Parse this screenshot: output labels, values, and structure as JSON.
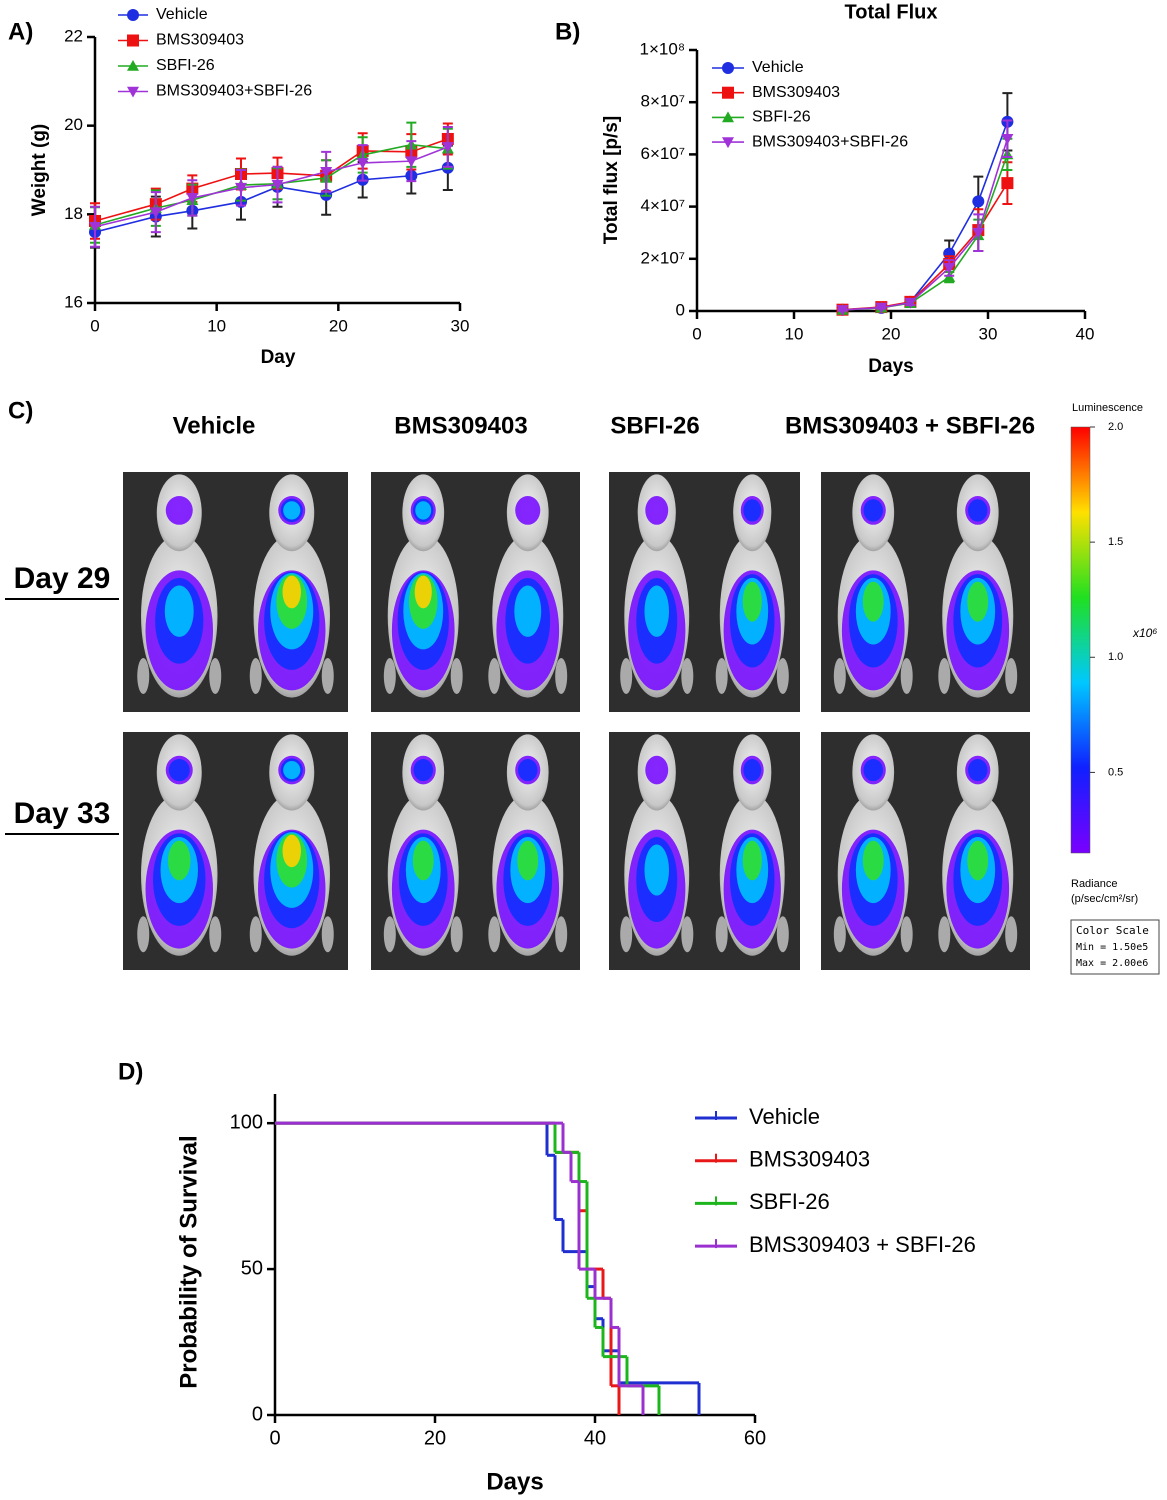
{
  "chart_data": [
    {
      "type": "line",
      "panel": "A)",
      "x_label": "Day",
      "y_label": "Weight (g)",
      "x": [
        0,
        5,
        8,
        12,
        15,
        19,
        22,
        26,
        29
      ],
      "xlim": [
        0,
        30
      ],
      "xticks": [
        0,
        10,
        20,
        30
      ],
      "ylim": [
        16,
        22
      ],
      "yticks": [
        16,
        18,
        20,
        22
      ],
      "legend": "upper-left",
      "series": [
        {
          "name": "Vehicle",
          "color": "#1f2ee0",
          "marker": "circle",
          "values": [
            17.6,
            17.95,
            18.08,
            18.28,
            18.62,
            18.44,
            18.78,
            18.87,
            19.05
          ],
          "errors": [
            0.35,
            0.45,
            0.4,
            0.4,
            0.45,
            0.45,
            0.4,
            0.4,
            0.5
          ]
        },
        {
          "name": "BMS309403",
          "color": "#ee1111",
          "marker": "square",
          "values": [
            17.85,
            18.23,
            18.58,
            18.91,
            18.93,
            18.87,
            19.43,
            19.41,
            19.7
          ],
          "errors": [
            0.4,
            0.35,
            0.3,
            0.35,
            0.35,
            0.35,
            0.4,
            0.4,
            0.35
          ]
        },
        {
          "name": "SBFI-26",
          "color": "#22aa22",
          "marker": "triangle-up",
          "values": [
            17.76,
            18.14,
            18.32,
            18.66,
            18.69,
            18.82,
            19.34,
            19.57,
            19.48
          ],
          "errors": [
            0.4,
            0.4,
            0.35,
            0.35,
            0.35,
            0.4,
            0.4,
            0.5,
            0.45
          ]
        },
        {
          "name": "BMS309403+SBFI-26",
          "color": "#a033d8",
          "marker": "triangle-down",
          "values": [
            17.72,
            18.05,
            18.37,
            18.6,
            18.67,
            18.96,
            19.16,
            19.2,
            19.52
          ],
          "errors": [
            0.45,
            0.45,
            0.4,
            0.4,
            0.4,
            0.45,
            0.4,
            0.45,
            0.45
          ]
        }
      ]
    },
    {
      "type": "line",
      "panel": "B)",
      "title": "Total Flux",
      "x_label": "Days",
      "y_label": "Total flux [p/s]",
      "x": [
        15,
        19,
        22,
        26,
        29,
        32
      ],
      "xlim": [
        0,
        40
      ],
      "xticks": [
        0,
        10,
        20,
        30,
        40
      ],
      "ylim": [
        0,
        100000000
      ],
      "yticks": [
        0,
        {
          "value": 20000000,
          "label": "2×10⁷"
        },
        {
          "value": 40000000,
          "label": "4×10⁷"
        },
        {
          "value": 60000000,
          "label": "6×10⁷"
        },
        {
          "value": 80000000,
          "label": "8×10⁷"
        },
        {
          "value": 100000000,
          "label": "1×10⁸"
        }
      ],
      "legend": "upper-left",
      "series": [
        {
          "name": "Vehicle",
          "color": "#1f2ee0",
          "marker": "circle",
          "values": [
            500000,
            1200000,
            3500000,
            22000000,
            42000000,
            72500000
          ],
          "errors": [
            300000,
            500000,
            1000000,
            5000000,
            9500000,
            11000000
          ]
        },
        {
          "name": "BMS309403",
          "color": "#ee1111",
          "marker": "square",
          "values": [
            500000,
            1500000,
            3500000,
            18000000,
            31000000,
            49000000
          ],
          "errors": [
            300000,
            500000,
            1000000,
            3000000,
            8000000,
            8000000
          ]
        },
        {
          "name": "SBFI-26",
          "color": "#22aa22",
          "marker": "triangle-up",
          "values": [
            400000,
            1200000,
            3000000,
            13000000,
            29000000,
            60000000
          ],
          "errors": [
            300000,
            400000,
            800000,
            2000000,
            6000000,
            6000000
          ]
        },
        {
          "name": "BMS309403+SBFI-26",
          "color": "#a033d8",
          "marker": "triangle-down",
          "values": [
            400000,
            1300000,
            3200000,
            16500000,
            30000000,
            66000000
          ],
          "errors": [
            300000,
            400000,
            900000,
            3000000,
            7000000,
            7000000
          ]
        }
      ]
    },
    {
      "type": "step",
      "panel": "D)",
      "x_label": "Days",
      "y_label": "Probability of Survival",
      "xlim": [
        0,
        60
      ],
      "xticks": [
        0,
        20,
        40,
        60
      ],
      "ylim": [
        0,
        110
      ],
      "yticks": [
        0,
        50,
        100
      ],
      "legend": "right",
      "series": [
        {
          "name": "Vehicle",
          "color": "#1f2fd0",
          "x": [
            0,
            34,
            35,
            36,
            39,
            40,
            41,
            43,
            53
          ],
          "values": [
            100,
            89,
            67,
            56,
            44,
            33,
            22,
            11,
            0
          ]
        },
        {
          "name": "BMS309403",
          "color": "#e81818",
          "x": [
            0,
            35,
            38,
            39,
            41,
            42,
            43
          ],
          "values": [
            100,
            90,
            70,
            50,
            40,
            10,
            0
          ]
        },
        {
          "name": "SBFI-26",
          "color": "#1cb51c",
          "x": [
            0,
            35,
            38,
            39,
            40,
            41,
            44,
            48
          ],
          "values": [
            100,
            90,
            80,
            40,
            30,
            20,
            10,
            0
          ]
        },
        {
          "name": "BMS309403 + SBFI-26",
          "color": "#9b30d0",
          "x": [
            0,
            36,
            37,
            38,
            40,
            42,
            43,
            46
          ],
          "values": [
            100,
            90,
            80,
            50,
            40,
            30,
            10,
            0
          ]
        }
      ]
    }
  ],
  "imaging": {
    "panel": "C)",
    "groups": [
      "Vehicle",
      "BMS309403",
      "SBFI-26",
      "BMS309403 + SBFI-26"
    ],
    "rows": [
      "Day 29",
      "Day 33"
    ],
    "colorbar": {
      "title": "Luminescence",
      "lim": [
        0.15,
        2.0
      ],
      "ticks": [
        {
          "value": 2,
          "label": "2.0"
        },
        1.5,
        {
          "value": 1,
          "label": "1.0"
        },
        0.5
      ],
      "multiplier": "x10⁶",
      "unit_title": "Radiance",
      "unit": "(p/sec/cm²/sr)",
      "scale_title": "Color Scale",
      "scale_min": "Min = 1.50e5",
      "scale_max": "Max = 2.00e6"
    }
  }
}
